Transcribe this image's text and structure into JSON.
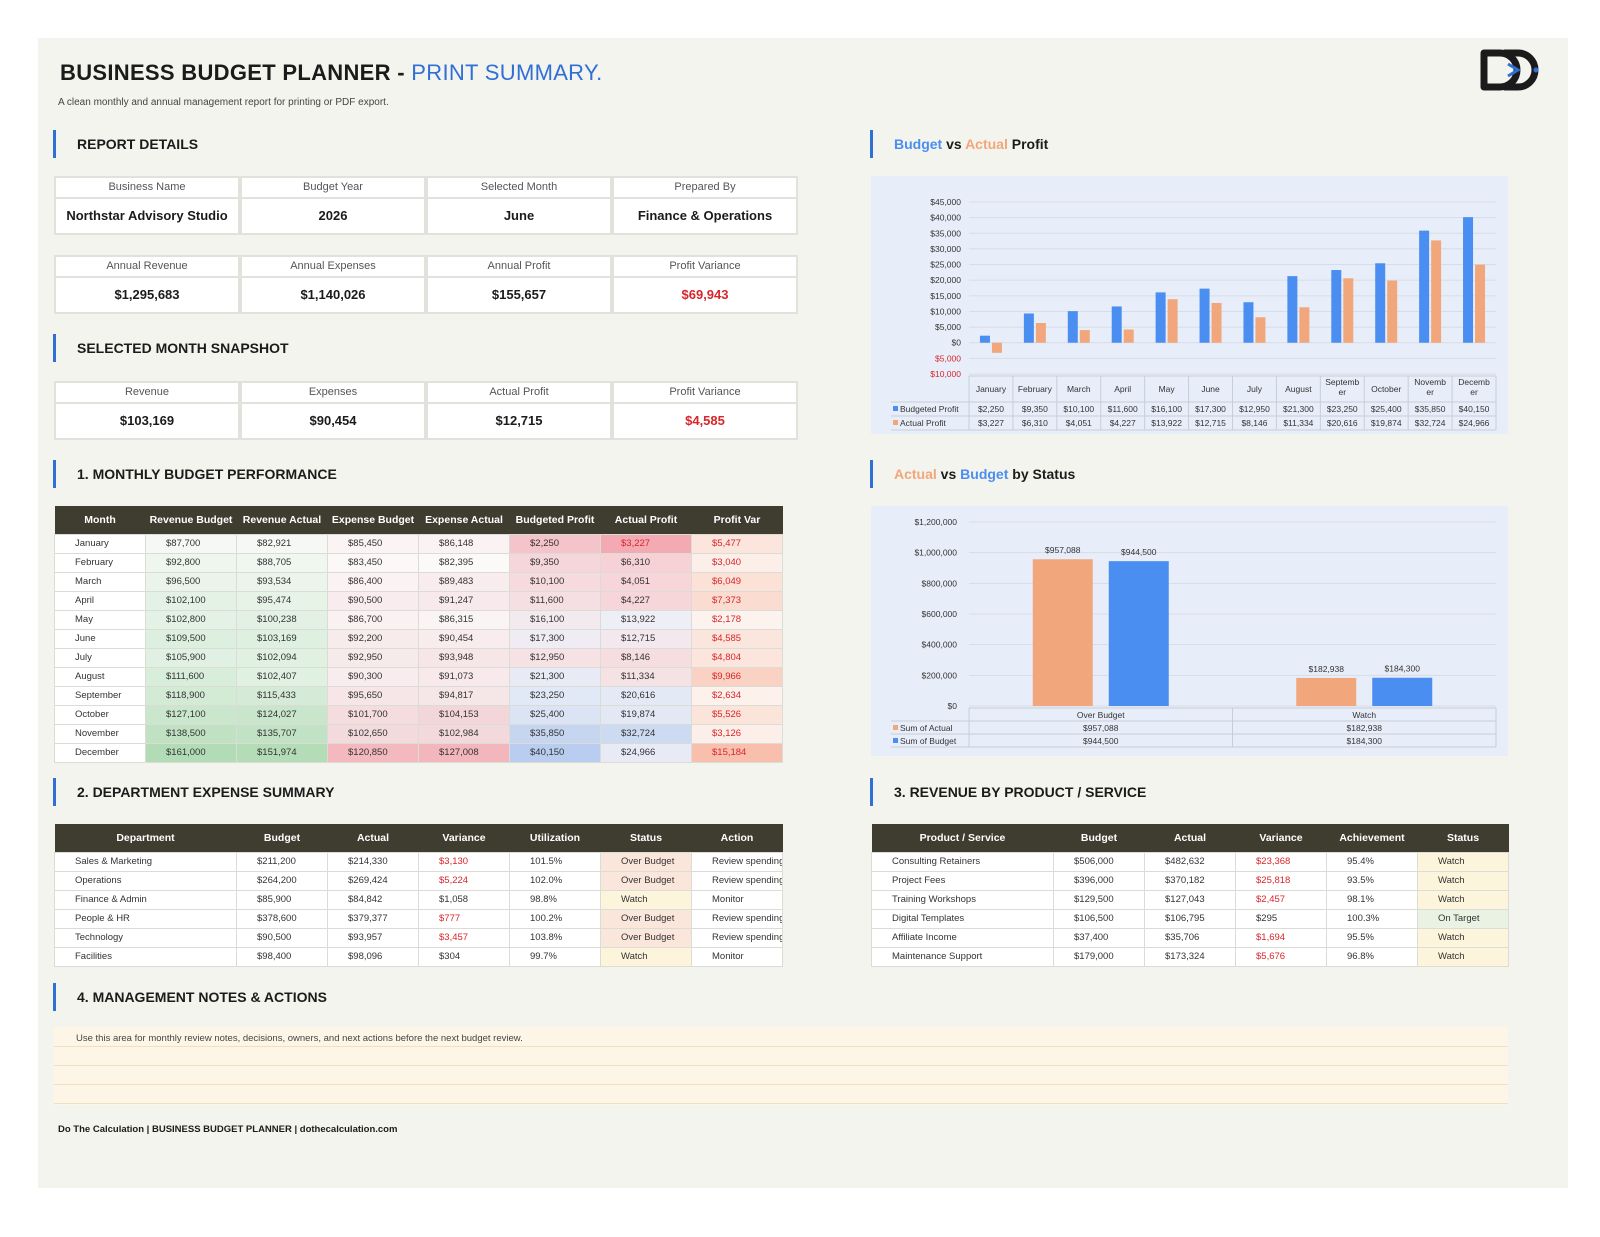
{
  "header": {
    "title_main": "BUSINESS BUDGET PLANNER - ",
    "title_accent": "PRINT SUMMARY.",
    "subtitle": "A clean monthly and annual management report for printing or PDF export."
  },
  "report_details": {
    "heading": "REPORT DETAILS",
    "row1": [
      {
        "label": "Business Name",
        "value": "Northstar Advisory Studio"
      },
      {
        "label": "Budget Year",
        "value": "2026"
      },
      {
        "label": "Selected Month",
        "value": "June"
      },
      {
        "label": "Prepared By",
        "value": "Finance & Operations"
      }
    ],
    "row2": [
      {
        "label": "Annual Revenue",
        "value": "$1,295,683"
      },
      {
        "label": "Annual Expenses",
        "value": "$1,140,026"
      },
      {
        "label": "Annual Profit",
        "value": "$155,657"
      },
      {
        "label": "Profit Variance",
        "value": "$69,943"
      }
    ]
  },
  "snapshot": {
    "heading": "SELECTED MONTH SNAPSHOT",
    "items": [
      {
        "label": "Revenue",
        "value": "$103,169"
      },
      {
        "label": "Expenses",
        "value": "$90,454"
      },
      {
        "label": "Actual Profit",
        "value": "$12,715"
      },
      {
        "label": "Profit Variance",
        "value": "$4,585"
      }
    ]
  },
  "monthly": {
    "heading": "1. MONTHLY BUDGET PERFORMANCE",
    "columns": [
      "Month",
      "Revenue Budget",
      "Revenue Actual",
      "Expense Budget",
      "Expense Actual",
      "Budgeted Profit",
      "Actual Profit",
      "Profit Var"
    ],
    "rows": [
      [
        "January",
        "$87,700",
        "$82,921",
        "$85,450",
        "$86,148",
        "$2,250",
        "$3,227",
        "$5,477"
      ],
      [
        "February",
        "$92,800",
        "$88,705",
        "$83,450",
        "$82,395",
        "$9,350",
        "$6,310",
        "$3,040"
      ],
      [
        "March",
        "$96,500",
        "$93,534",
        "$86,400",
        "$89,483",
        "$10,100",
        "$4,051",
        "$6,049"
      ],
      [
        "April",
        "$102,100",
        "$95,474",
        "$90,500",
        "$91,247",
        "$11,600",
        "$4,227",
        "$7,373"
      ],
      [
        "May",
        "$102,800",
        "$100,238",
        "$86,700",
        "$86,315",
        "$16,100",
        "$13,922",
        "$2,178"
      ],
      [
        "June",
        "$109,500",
        "$103,169",
        "$92,200",
        "$90,454",
        "$17,300",
        "$12,715",
        "$4,585"
      ],
      [
        "July",
        "$105,900",
        "$102,094",
        "$92,950",
        "$93,948",
        "$12,950",
        "$8,146",
        "$4,804"
      ],
      [
        "August",
        "$111,600",
        "$102,407",
        "$90,300",
        "$91,073",
        "$21,300",
        "$11,334",
        "$9,966"
      ],
      [
        "September",
        "$118,900",
        "$115,433",
        "$95,650",
        "$94,817",
        "$23,250",
        "$20,616",
        "$2,634"
      ],
      [
        "October",
        "$127,100",
        "$124,027",
        "$101,700",
        "$104,153",
        "$25,400",
        "$19,874",
        "$5,526"
      ],
      [
        "November",
        "$138,500",
        "$135,707",
        "$102,650",
        "$102,984",
        "$35,850",
        "$32,724",
        "$3,126"
      ],
      [
        "December",
        "$161,000",
        "$151,974",
        "$120,850",
        "$127,008",
        "$40,150",
        "$24,966",
        "$15,184"
      ]
    ],
    "heat": {
      "rev_budget": [
        "#f5f8f4",
        "#eef6ee",
        "#eaf4ea",
        "#e4f2e5",
        "#e4f2e5",
        "#ddefdf",
        "#e0f0e2",
        "#d9eddb",
        "#d3ead5",
        "#cae6cc",
        "#c0e2c3",
        "#b2dcb6"
      ],
      "rev_actual": [
        "#f5f8f4",
        "#f0f7f0",
        "#ebf5eb",
        "#e8f3e8",
        "#e2f1e3",
        "#def0df",
        "#e0f0e1",
        "#e0f0e1",
        "#d5ebd7",
        "#c9e6cc",
        "#c1e2c4",
        "#b3dcb7"
      ],
      "exp_budget": [
        "#faf4f4",
        "#fcf8f8",
        "#faf2f3",
        "#f8ecee",
        "#faf1f2",
        "#f7ebec",
        "#f7eaeb",
        "#f8ecee",
        "#f6e6e8",
        "#f4dcdf",
        "#f3dadd",
        "#f4b9bf"
      ],
      "exp_actual": [
        "#faf2f3",
        "#fcf9f9",
        "#f8ecee",
        "#f8eaec",
        "#faf4f5",
        "#f8ecee",
        "#f6e6e8",
        "#f8eaec",
        "#f5e6e8",
        "#f3d6da",
        "#f4d9dc",
        "#f4b6bd"
      ],
      "bud_profit": [
        "#f4c4ca",
        "#f5d6da",
        "#f6dadd",
        "#f6dfe2",
        "#f3eaf0",
        "#f0ecf3",
        "#f6e2e5",
        "#e8ebf6",
        "#e1e8f6",
        "#dbe4f5",
        "#c6d6f0",
        "#b8cdef"
      ],
      "act_profit": [
        "#f3aab3",
        "#f6d2d6",
        "#f7d5d9",
        "#f7d6da",
        "#eeeef6",
        "#f2e8ee",
        "#f6dde0",
        "#f5e2e5",
        "#e4e9f6",
        "#e3e8f5",
        "#ccdaf2",
        "#e8ebf6"
      ],
      "profit_var": [
        "#fbe5dc",
        "#fcefe9",
        "#fbe1d6",
        "#fbdcd0",
        "#fdf3ee",
        "#fbe6dd",
        "#fbe5dc",
        "#fad2c3",
        "#fdf1eb",
        "#fbe4da",
        "#fceee8",
        "#f8bfac"
      ]
    }
  },
  "departments": {
    "heading": "2. DEPARTMENT EXPENSE SUMMARY",
    "columns": [
      "Department",
      "Budget",
      "Actual",
      "Variance",
      "Utilization",
      "Status",
      "Action"
    ],
    "rows": [
      [
        "Sales & Marketing",
        "$211,200",
        "$214,330",
        "$3,130",
        "101.5%",
        "Over Budget",
        "Review spending"
      ],
      [
        "Operations",
        "$264,200",
        "$269,424",
        "$5,224",
        "102.0%",
        "Over Budget",
        "Review spending"
      ],
      [
        "Finance & Admin",
        "$85,900",
        "$84,842",
        "$1,058",
        "98.8%",
        "Watch",
        "Monitor"
      ],
      [
        "People & HR",
        "$378,600",
        "$379,377",
        "$777",
        "100.2%",
        "Over Budget",
        "Review spending"
      ],
      [
        "Technology",
        "$90,500",
        "$93,957",
        "$3,457",
        "103.8%",
        "Over Budget",
        "Review spending"
      ],
      [
        "Facilities",
        "$98,400",
        "$98,096",
        "$304",
        "99.7%",
        "Watch",
        "Monitor"
      ]
    ],
    "variance_red": [
      true,
      true,
      false,
      true,
      true,
      false
    ]
  },
  "products": {
    "heading": "3. REVENUE BY PRODUCT / SERVICE",
    "columns": [
      "Product / Service",
      "Budget",
      "Actual",
      "Variance",
      "Achievement",
      "Status"
    ],
    "rows": [
      [
        "Consulting Retainers",
        "$506,000",
        "$482,632",
        "$23,368",
        "95.4%",
        "Watch"
      ],
      [
        "Project Fees",
        "$396,000",
        "$370,182",
        "$25,818",
        "93.5%",
        "Watch"
      ],
      [
        "Training Workshops",
        "$129,500",
        "$127,043",
        "$2,457",
        "98.1%",
        "Watch"
      ],
      [
        "Digital Templates",
        "$106,500",
        "$106,795",
        "$295",
        "100.3%",
        "On Target"
      ],
      [
        "Affiliate Income",
        "$37,400",
        "$35,706",
        "$1,694",
        "95.5%",
        "Watch"
      ],
      [
        "Maintenance Support",
        "$179,000",
        "$173,324",
        "$5,676",
        "96.8%",
        "Watch"
      ]
    ],
    "variance_red": [
      true,
      true,
      true,
      false,
      true,
      true
    ]
  },
  "notes": {
    "heading": "4. MANAGEMENT NOTES & ACTIONS",
    "text": "Use this area for monthly review notes, decisions, owners, and next actions before the next budget review."
  },
  "footer": "Do The Calculation | BUSINESS BUDGET PLANNER | dothecalculation.com",
  "chart_titles": {
    "profit": {
      "a": "Budget",
      "b": " vs ",
      "c": "Actual",
      "d": " Profit"
    },
    "status": {
      "a": "Actual",
      "b": " vs ",
      "c": "Budget",
      "d": " by Status"
    }
  },
  "colors": {
    "accent_blue": "#2f6fd6",
    "budget_blue": "#4a8ef2",
    "actual_orange": "#f2a67b",
    "header_dark": "#3f3d30",
    "red": "#d9252b",
    "status_over": "#fbe6dc",
    "status_watch": "#fdf4dc",
    "status_on_target": "#eaf2e4"
  },
  "chart_data": [
    {
      "type": "bar",
      "title": "Budget vs Actual Profit",
      "categories": [
        "January",
        "February",
        "March",
        "April",
        "May",
        "June",
        "July",
        "August",
        "September",
        "October",
        "November",
        "December"
      ],
      "category_display": [
        [
          "January"
        ],
        [
          "February"
        ],
        [
          "March"
        ],
        [
          "April"
        ],
        [
          "May"
        ],
        [
          "June"
        ],
        [
          "July"
        ],
        [
          "August"
        ],
        [
          "Septemb",
          "er"
        ],
        [
          "October"
        ],
        [
          "Novemb",
          "er"
        ],
        [
          "Decemb",
          "er"
        ]
      ],
      "series": [
        {
          "name": "Budgeted Profit",
          "color": "#4a8ef2",
          "values": [
            2250,
            9350,
            10100,
            11600,
            16100,
            17300,
            12950,
            21300,
            23250,
            25400,
            35850,
            40150
          ],
          "labels": [
            "$2,250",
            "$9,350",
            "$10,100",
            "$11,600",
            "$16,100",
            "$17,300",
            "$12,950",
            "$21,300",
            "$23,250",
            "$25,400",
            "$35,850",
            "$40,150"
          ]
        },
        {
          "name": "Actual Profit",
          "color": "#f2a67b",
          "values": [
            -3227,
            6310,
            4051,
            4227,
            13922,
            12715,
            8146,
            11334,
            20616,
            19874,
            32724,
            24966
          ],
          "labels": [
            "$3,227",
            "$6,310",
            "$4,051",
            "$4,227",
            "$13,922",
            "$12,715",
            "$8,146",
            "$11,334",
            "$20,616",
            "$19,874",
            "$32,724",
            "$24,966"
          ]
        }
      ],
      "ylim": [
        -10000,
        45000
      ],
      "yticks": [
        45000,
        40000,
        35000,
        30000,
        25000,
        20000,
        15000,
        10000,
        5000,
        0,
        -5000,
        -10000
      ],
      "ytick_labels": [
        "$45,000",
        "$40,000",
        "$35,000",
        "$30,000",
        "$25,000",
        "$20,000",
        "$15,000",
        "$10,000",
        "$5,000",
        "$0",
        "$5,000",
        "$10,000"
      ],
      "grid": true,
      "legend": "data-table"
    },
    {
      "type": "bar",
      "title": "Actual vs Budget by Status",
      "categories": [
        "Over Budget",
        "Watch"
      ],
      "series": [
        {
          "name": "Sum of Actual",
          "color": "#f2a67b",
          "values": [
            957088,
            182938
          ],
          "labels": [
            "$957,088",
            "$182,938"
          ]
        },
        {
          "name": "Sum of Budget",
          "color": "#4a8ef2",
          "values": [
            944500,
            184300
          ],
          "labels": [
            "$944,500",
            "$184,300"
          ]
        }
      ],
      "ylim": [
        0,
        1200000
      ],
      "yticks": [
        1200000,
        1000000,
        800000,
        600000,
        400000,
        200000,
        0
      ],
      "ytick_labels": [
        "$1,200,000",
        "$1,000,000",
        "$800,000",
        "$600,000",
        "$400,000",
        "$200,000",
        "$0"
      ],
      "grid": true,
      "legend": "data-table"
    }
  ]
}
